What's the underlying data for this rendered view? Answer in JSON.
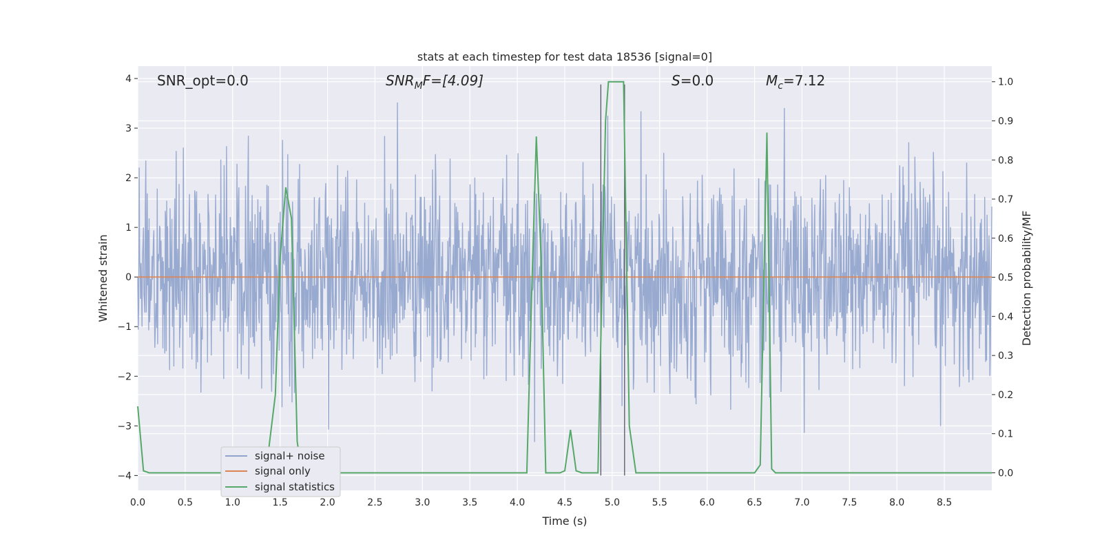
{
  "chart_data": {
    "type": "line",
    "title": "stats at each timestep for test data 18536 [signal=0]",
    "xlabel": "Time (s)",
    "ylabel_left": "Whitened strain",
    "ylabel_right": "Detection probability/MF",
    "xlim": [
      0.0,
      9.0
    ],
    "ylim_left": [
      -4.3,
      4.25
    ],
    "ylim_right": [
      -0.045,
      1.04
    ],
    "x_ticks": [
      "0.0",
      "0.5",
      "1.0",
      "1.5",
      "2.0",
      "2.5",
      "3.0",
      "3.5",
      "4.0",
      "4.5",
      "5.0",
      "5.5",
      "6.0",
      "6.5",
      "7.0",
      "7.5",
      "8.0",
      "8.5"
    ],
    "y_ticks_left": [
      "−4",
      "−3",
      "−2",
      "−1",
      "0",
      "1",
      "2",
      "3",
      "4"
    ],
    "y_ticks_right": [
      "0.0",
      "0.1",
      "0.2",
      "0.3",
      "0.4",
      "0.5",
      "0.6",
      "0.7",
      "0.8",
      "0.9",
      "1.0"
    ],
    "grid": true,
    "legend_position": "lower-left",
    "annotations": {
      "snr_opt": "SNR_opt=0.0",
      "snr_mf_main": "SNR",
      "snr_mf_sub": "M",
      "snr_mf_rest": "F=[4.09]",
      "s_main": "S",
      "s_rest": "=0.0",
      "mc_main": "M",
      "mc_sub": "c",
      "mc_rest": "=7.12"
    },
    "vlines_x": [
      4.88,
      5.13
    ],
    "series": [
      {
        "name": "signal+ noise",
        "color": "#8fa3cc",
        "description_kind": "noise",
        "sigma": 1.0,
        "samples": 1800
      },
      {
        "name": "signal only",
        "color": "#dd8452",
        "x": [
          0.0,
          9.0
        ],
        "y": [
          0.0,
          0.0
        ]
      },
      {
        "name": "signal statistics",
        "color": "#55a868",
        "x": [
          0.0,
          0.06,
          0.12,
          1.2,
          1.35,
          1.45,
          1.5,
          1.56,
          1.62,
          1.68,
          1.73,
          4.1,
          4.15,
          4.2,
          4.25,
          4.3,
          4.45,
          4.5,
          4.56,
          4.62,
          4.68,
          4.85,
          4.93,
          4.96,
          5.0,
          5.05,
          5.12,
          5.18,
          5.25,
          6.5,
          6.56,
          6.63,
          6.68,
          6.72,
          9.0
        ],
        "y": [
          0.17,
          0.005,
          0.0,
          0.0,
          0.0,
          0.2,
          0.55,
          0.73,
          0.65,
          0.08,
          0.0,
          0.0,
          0.45,
          0.86,
          0.55,
          0.0,
          0.0,
          0.005,
          0.11,
          0.005,
          0.0,
          0.0,
          0.9,
          1.0,
          1.0,
          1.0,
          1.0,
          0.12,
          0.0,
          0.0,
          0.02,
          0.87,
          0.01,
          0.0,
          0.0
        ]
      }
    ]
  }
}
